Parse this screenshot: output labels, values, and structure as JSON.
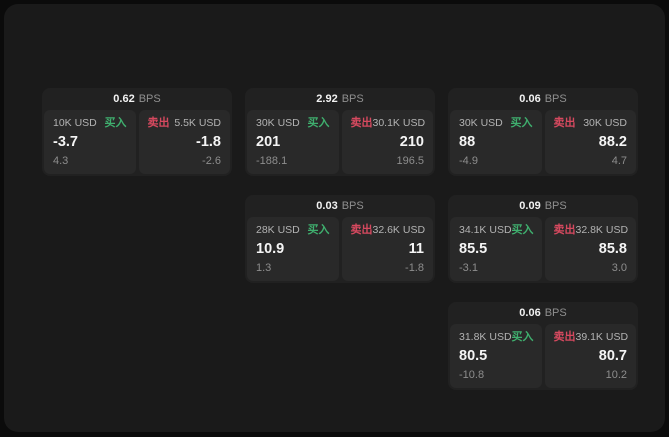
{
  "colors": {
    "outer_bg": "#0b0b0b",
    "surface_bg": "#1a1a1a",
    "card_bg": "#212121",
    "panel_bg": "#292929",
    "buy_accent": "#3faf6e",
    "sell_accent": "#d6495f",
    "primary_text": "#f5f5f5",
    "muted_text": "#8d8d8d"
  },
  "labels": {
    "buy": "买入",
    "sell": "卖出",
    "bps": "BPS"
  },
  "cards": [
    {
      "bps": "0.62",
      "buy": {
        "amount": "10K USD",
        "value": "-3.7",
        "sub": "4.3"
      },
      "sell": {
        "amount": "5.5K USD",
        "value": "-1.8",
        "sub": "-2.6"
      }
    },
    {
      "bps": "2.92",
      "buy": {
        "amount": "30K USD",
        "value": "201",
        "sub": "-188.1"
      },
      "sell": {
        "amount": "30.1K USD",
        "value": "210",
        "sub": "196.5"
      }
    },
    {
      "bps": "0.06",
      "buy": {
        "amount": "30K USD",
        "value": "88",
        "sub": "-4.9"
      },
      "sell": {
        "amount": "30K USD",
        "value": "88.2",
        "sub": "4.7"
      }
    },
    {
      "bps": "0.03",
      "buy": {
        "amount": "28K USD",
        "value": "10.9",
        "sub": "1.3"
      },
      "sell": {
        "amount": "32.6K USD",
        "value": "11",
        "sub": "-1.8"
      }
    },
    {
      "bps": "0.09",
      "buy": {
        "amount": "34.1K USD",
        "value": "85.5",
        "sub": "-3.1"
      },
      "sell": {
        "amount": "32.8K USD",
        "value": "85.8",
        "sub": "3.0"
      }
    },
    {
      "bps": "0.06",
      "buy": {
        "amount": "31.8K USD",
        "value": "80.5",
        "sub": "-10.8"
      },
      "sell": {
        "amount": "39.1K USD",
        "value": "80.7",
        "sub": "10.2"
      }
    }
  ]
}
